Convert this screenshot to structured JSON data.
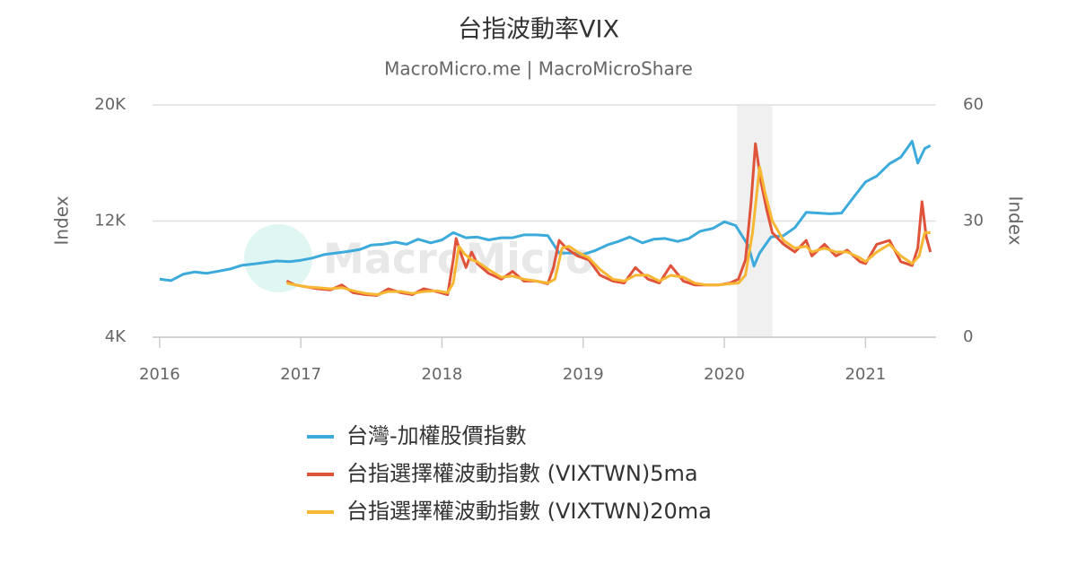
{
  "chart_data": {
    "type": "line",
    "title": "台指波動率VIX",
    "subtitle": "MacroMicro.me | MacroMicroShare",
    "watermark": "MacroMicro",
    "y_label": "Index",
    "y2_label": "Index",
    "xlim": [
      2015.95,
      2021.5
    ],
    "xticks": [
      2016,
      2017,
      2018,
      2019,
      2020,
      2021
    ],
    "ylim": [
      4000,
      20000
    ],
    "yticks": [
      {
        "value": 4000,
        "label": "4K"
      },
      {
        "value": 12000,
        "label": "12K"
      },
      {
        "value": 20000,
        "label": "20K"
      }
    ],
    "y2lim": [
      0,
      60
    ],
    "y2ticks": [
      0,
      30,
      60
    ],
    "grid": true,
    "shaded_region": [
      2020.09,
      2020.34
    ],
    "shaded_color": "#f0f0f0",
    "series": [
      {
        "name": "台灣-加權股價指數",
        "color": "#3caadb",
        "axis": "y",
        "x": [
          2016.0,
          2016.08,
          2016.17,
          2016.25,
          2016.33,
          2016.42,
          2016.5,
          2016.58,
          2016.67,
          2016.75,
          2016.83,
          2016.92,
          2017.0,
          2017.08,
          2017.17,
          2017.25,
          2017.33,
          2017.42,
          2017.5,
          2017.58,
          2017.67,
          2017.75,
          2017.83,
          2017.92,
          2018.0,
          2018.08,
          2018.17,
          2018.25,
          2018.33,
          2018.42,
          2018.5,
          2018.58,
          2018.67,
          2018.75,
          2018.83,
          2018.92,
          2019.0,
          2019.08,
          2019.17,
          2019.25,
          2019.33,
          2019.42,
          2019.5,
          2019.58,
          2019.67,
          2019.75,
          2019.83,
          2019.92,
          2020.0,
          2020.08,
          2020.17,
          2020.21,
          2020.25,
          2020.33,
          2020.42,
          2020.5,
          2020.58,
          2020.67,
          2020.75,
          2020.83,
          2020.92,
          2021.0,
          2021.08,
          2021.17,
          2021.25,
          2021.33,
          2021.37,
          2021.42,
          2021.46
        ],
        "values": [
          8000,
          7900,
          8350,
          8500,
          8400,
          8550,
          8700,
          8950,
          9050,
          9150,
          9250,
          9200,
          9300,
          9450,
          9700,
          9800,
          9900,
          10050,
          10350,
          10400,
          10550,
          10400,
          10750,
          10500,
          10700,
          11200,
          10850,
          10900,
          10700,
          10850,
          10850,
          11050,
          11050,
          11000,
          9800,
          9800,
          9700,
          9950,
          10350,
          10600,
          10900,
          10500,
          10750,
          10800,
          10600,
          10800,
          11300,
          11500,
          11950,
          11700,
          10300,
          8900,
          9800,
          10900,
          11000,
          11550,
          12600,
          12550,
          12500,
          12550,
          13700,
          14700,
          15100,
          15950,
          16400,
          17500,
          16000,
          17000,
          17200
        ]
      },
      {
        "name": "台指選擇權波動指數 (VIXTWN)5ma",
        "color": "#e0533a",
        "axis": "y2",
        "x": [
          2016.9,
          2016.96,
          2017.04,
          2017.12,
          2017.21,
          2017.29,
          2017.37,
          2017.46,
          2017.54,
          2017.62,
          2017.71,
          2017.79,
          2017.87,
          2017.96,
          2018.04,
          2018.08,
          2018.1,
          2018.13,
          2018.17,
          2018.21,
          2018.25,
          2018.33,
          2018.42,
          2018.5,
          2018.58,
          2018.67,
          2018.75,
          2018.79,
          2018.83,
          2018.88,
          2018.96,
          2019.04,
          2019.12,
          2019.21,
          2019.29,
          2019.37,
          2019.46,
          2019.54,
          2019.62,
          2019.71,
          2019.79,
          2019.87,
          2019.96,
          2020.04,
          2020.1,
          2020.15,
          2020.19,
          2020.22,
          2020.26,
          2020.3,
          2020.34,
          2020.42,
          2020.5,
          2020.58,
          2020.62,
          2020.71,
          2020.79,
          2020.87,
          2020.96,
          2021.0,
          2021.08,
          2021.17,
          2021.25,
          2021.33,
          2021.37,
          2021.4,
          2021.43,
          2021.46
        ],
        "values": [
          14.5,
          13.5,
          13,
          12.5,
          12.2,
          13.5,
          11.5,
          11,
          10.8,
          12.5,
          11.5,
          11,
          12.5,
          11.8,
          11,
          20,
          25.5,
          22,
          18,
          22,
          19,
          16.5,
          15,
          17,
          14.5,
          14.5,
          13.8,
          18,
          25,
          23,
          21,
          20,
          16,
          14.5,
          14,
          18,
          15,
          14,
          18.5,
          14.5,
          13.5,
          13.5,
          13.5,
          14,
          15,
          20,
          35,
          50,
          40,
          33,
          27,
          24,
          22,
          25,
          21,
          24,
          21,
          22.5,
          19.5,
          19,
          24,
          25,
          19.5,
          18.5,
          23,
          35,
          26,
          22
        ]
      },
      {
        "name": "台指選擇權波動指數 (VIXTWN)20ma",
        "color": "#f7b733",
        "axis": "y2",
        "x": [
          2016.9,
          2016.96,
          2017.04,
          2017.12,
          2017.21,
          2017.29,
          2017.37,
          2017.46,
          2017.54,
          2017.62,
          2017.71,
          2017.79,
          2017.87,
          2017.96,
          2018.04,
          2018.08,
          2018.12,
          2018.16,
          2018.21,
          2018.25,
          2018.33,
          2018.42,
          2018.5,
          2018.58,
          2018.67,
          2018.75,
          2018.8,
          2018.85,
          2018.9,
          2018.96,
          2019.04,
          2019.12,
          2019.21,
          2019.29,
          2019.37,
          2019.46,
          2019.54,
          2019.62,
          2019.71,
          2019.79,
          2019.87,
          2019.96,
          2020.04,
          2020.1,
          2020.15,
          2020.2,
          2020.25,
          2020.29,
          2020.34,
          2020.42,
          2020.5,
          2020.58,
          2020.62,
          2020.71,
          2020.79,
          2020.87,
          2020.96,
          2021.0,
          2021.08,
          2021.17,
          2021.25,
          2021.33,
          2021.38,
          2021.42,
          2021.46
        ],
        "values": [
          14,
          13.5,
          13,
          12.8,
          12.5,
          12.8,
          12,
          11.3,
          11,
          11.8,
          11.8,
          11.3,
          11.8,
          12,
          11.5,
          14,
          23.5,
          21.5,
          20,
          19.5,
          17.5,
          15.5,
          15.8,
          15,
          14.5,
          14,
          15,
          23,
          23.5,
          22,
          20.5,
          17.5,
          15,
          14.5,
          16,
          16,
          14.5,
          16,
          15.5,
          14,
          13.5,
          13.5,
          13.8,
          14,
          16,
          27,
          44,
          37,
          30,
          25,
          23,
          23.5,
          22,
          23,
          22,
          22,
          20.5,
          19.5,
          22,
          24,
          21,
          19,
          21,
          27,
          27
        ]
      }
    ],
    "legend": "bottom"
  }
}
